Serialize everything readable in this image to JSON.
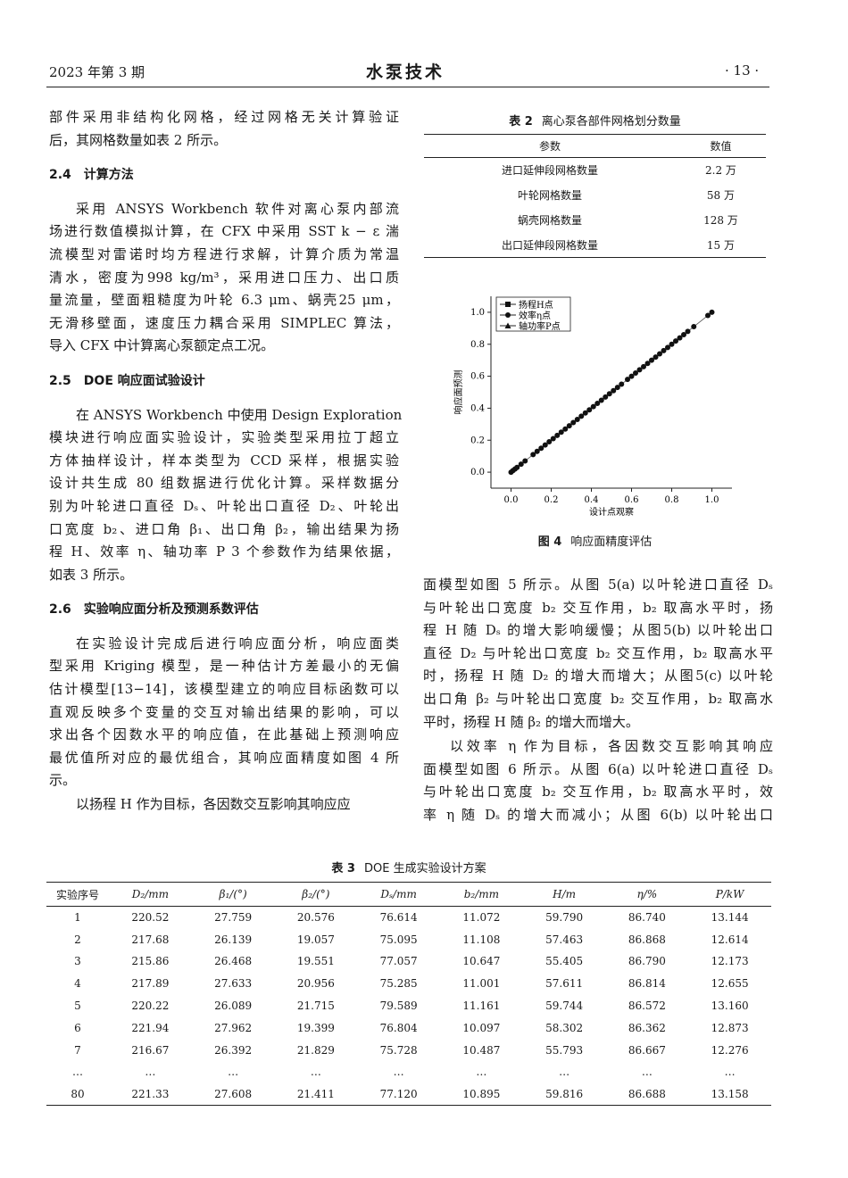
{
  "header": {
    "issue": "2023 年第 3 期",
    "journal": "水泵技术",
    "page": "· 13 ·"
  },
  "left": {
    "p0": [
      "部件采用非结构化网格，经过网格无关计算验证",
      "后，其网格数量如表 2 所示。"
    ],
    "h24": "2.4　计算方法",
    "p1": [
      "采用 ANSYS Workbench 软件对离心泵内部流",
      "场进行数值模拟计算，在 CFX 中采用 SST k − ε 湍",
      "流模型对雷诺时均方程进行求解，计算介质为常温",
      "清水，密度为998 kg/m³，采用进口压力、出口质",
      "量流量，壁面粗糙度为叶轮 6.3 μm、蜗壳25 μm，",
      "无滑移壁面，速度压力耦合采用 SIMPLEC 算法，",
      "导入 CFX 中计算离心泵额定点工况。"
    ],
    "h25": "2.5　DOE 响应面试验设计",
    "p2": [
      "在 ANSYS Workbench 中使用 Design Exploration",
      "模块进行响应面实验设计，实验类型采用拉丁超立",
      "方体抽样设计，样本类型为 CCD 采样，根据实验",
      "设计共生成 80 组数据进行优化计算。采样数据分",
      "别为叶轮进口直径 Dₛ、叶轮出口直径 D₂、叶轮出",
      "口宽度 b₂、进口角 β₁、出口角 β₂，输出结果为扬",
      "程 H、效率 η、轴功率 P 3 个参数作为结果依据，",
      "如表 3 所示。"
    ],
    "h26": "2.6　实验响应面分析及预测系数评估",
    "p3": [
      "在实验设计完成后进行响应面分析，响应面类",
      "型采用 Kriging 模型，是一种估计方差最小的无偏",
      "估计模型[13−14]，该模型建立的响应目标函数可以",
      "直观反映多个变量的交互对输出结果的影响，可以",
      "求出各个因数水平的响应值，在此基础上预测响应",
      "最优值所对应的最优组合，其响应面精度如图 4 所",
      "示。"
    ],
    "p4": [
      "以扬程 H 作为目标，各因数交互影响其响应应"
    ]
  },
  "table2": {
    "label": "表 2",
    "title": "离心泵各部件网格划分数量",
    "headers": [
      "参数",
      "数值"
    ],
    "rows": [
      [
        "进口延伸段网格数量",
        "2.2 万"
      ],
      [
        "叶轮网格数量",
        "58 万"
      ],
      [
        "蜗壳网格数量",
        "128 万"
      ],
      [
        "出口延伸段网格数量",
        "15 万"
      ]
    ]
  },
  "chart_data": {
    "type": "scatter",
    "xlabel": "设计点观察",
    "ylabel": "响应面预测",
    "xlim": [
      -0.1,
      1.1
    ],
    "ylim": [
      -0.1,
      1.1
    ],
    "xticks": [
      "0.0",
      "0.2",
      "0.4",
      "0.6",
      "0.8",
      "1.0"
    ],
    "yticks": [
      "0.0",
      "0.2",
      "0.4",
      "0.6",
      "0.8",
      "1.0"
    ],
    "legend_position": "top-left",
    "grid": false,
    "series": [
      {
        "name": "扬程H点",
        "marker": "square"
      },
      {
        "name": "效率η点",
        "marker": "circle"
      },
      {
        "name": "轴功率P点",
        "marker": "triangle"
      }
    ],
    "points": [
      0,
      0.01,
      0.02,
      0.03,
      0.05,
      0.07,
      0.11,
      0.13,
      0.15,
      0.17,
      0.19,
      0.21,
      0.23,
      0.25,
      0.27,
      0.29,
      0.31,
      0.33,
      0.35,
      0.37,
      0.39,
      0.41,
      0.43,
      0.45,
      0.47,
      0.49,
      0.51,
      0.53,
      0.55,
      0.58,
      0.6,
      0.62,
      0.64,
      0.66,
      0.68,
      0.7,
      0.72,
      0.74,
      0.76,
      0.78,
      0.8,
      0.82,
      0.84,
      0.86,
      0.88,
      0.91,
      0.98,
      1.0
    ]
  },
  "figure4": {
    "label": "图 4",
    "caption": "响应面精度评估"
  },
  "right": {
    "p5": [
      "面模型如图 5 所示。从图 5(a) 以叶轮进口直径 Dₛ",
      "与叶轮出口宽度 b₂ 交互作用，b₂ 取高水平时，扬",
      "程 H 随 Dₛ 的增大影响缓慢；从图5(b) 以叶轮出口",
      "直径 D₂ 与叶轮出口宽度 b₂ 交互作用，b₂ 取高水平",
      "时，扬程 H 随 D₂ 的增大而增大；从图5(c) 以叶轮",
      "出口角 β₂ 与叶轮出口宽度 b₂ 交互作用，b₂ 取高水",
      "平时，扬程 H 随 β₂ 的增大而增大。"
    ],
    "p6": [
      "以效率 η 作为目标，各因数交互影响其响应",
      "面模型如图 6 所示。从图 6(a) 以叶轮进口直径 Dₛ",
      "与叶轮出口宽度 b₂ 交互作用，b₂ 取高水平时，效",
      "率 η 随 Dₛ 的增大而减小；从图 6(b) 以叶轮出口"
    ]
  },
  "table3": {
    "label": "表 3",
    "title": "DOE 生成实验设计方案",
    "headers": [
      "实验序号",
      "D₂/mm",
      "β₁/(°)",
      "β₂/(°)",
      "Dₛ/mm",
      "b₂/mm",
      "H/m",
      "η/%",
      "P/kW"
    ],
    "rows": [
      [
        "1",
        "220.52",
        "27.759",
        "20.576",
        "76.614",
        "11.072",
        "59.790",
        "86.740",
        "13.144"
      ],
      [
        "2",
        "217.68",
        "26.139",
        "19.057",
        "75.095",
        "11.108",
        "57.463",
        "86.868",
        "12.614"
      ],
      [
        "3",
        "215.86",
        "26.468",
        "19.551",
        "77.057",
        "10.647",
        "55.405",
        "86.790",
        "12.173"
      ],
      [
        "4",
        "217.89",
        "27.633",
        "20.956",
        "75.285",
        "11.001",
        "57.611",
        "86.814",
        "12.655"
      ],
      [
        "5",
        "220.22",
        "26.089",
        "21.715",
        "79.589",
        "11.161",
        "59.744",
        "86.572",
        "13.160"
      ],
      [
        "6",
        "221.94",
        "27.962",
        "19.399",
        "76.804",
        "10.097",
        "58.302",
        "86.362",
        "12.873"
      ],
      [
        "7",
        "216.67",
        "26.392",
        "21.829",
        "75.728",
        "10.487",
        "55.793",
        "86.667",
        "12.276"
      ],
      [
        "…",
        "…",
        "…",
        "…",
        "…",
        "…",
        "…",
        "…",
        "…"
      ],
      [
        "80",
        "221.33",
        "27.608",
        "21.411",
        "77.120",
        "10.895",
        "59.816",
        "86.688",
        "13.158"
      ]
    ]
  }
}
